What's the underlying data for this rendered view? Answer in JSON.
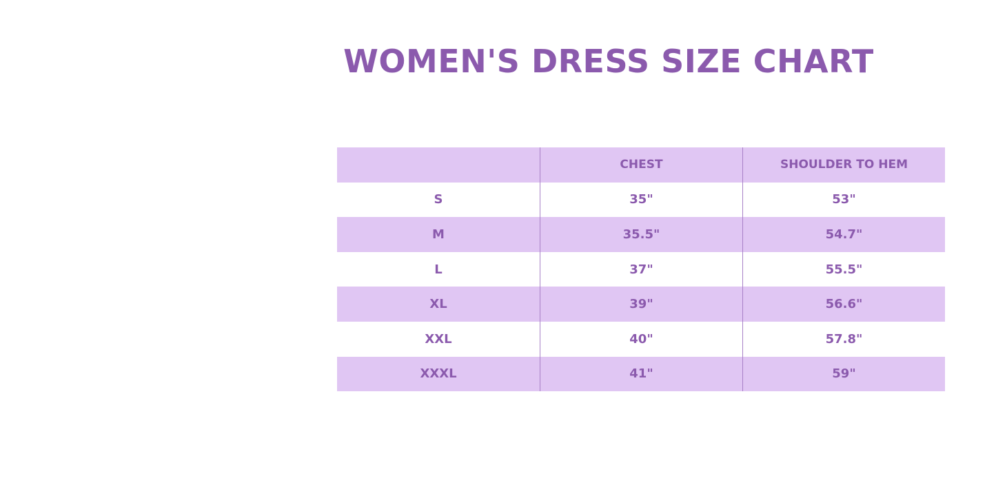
{
  "title": "WOMEN'S DRESS SIZE CHART",
  "colors": {
    "accent": "#8b5aad",
    "row_fill": "#e0c6f3"
  },
  "table": {
    "headers": [
      "",
      "CHEST",
      "SHOULDER TO HEM"
    ],
    "rows": [
      [
        "S",
        "35\"",
        "53\""
      ],
      [
        "M",
        "35.5\"",
        "54.7\""
      ],
      [
        "L",
        "37\"",
        "55.5\""
      ],
      [
        "XL",
        "39\"",
        "56.6\""
      ],
      [
        "XXL",
        "40\"",
        "57.8\""
      ],
      [
        "XXXL",
        "41\"",
        "59\""
      ]
    ]
  }
}
